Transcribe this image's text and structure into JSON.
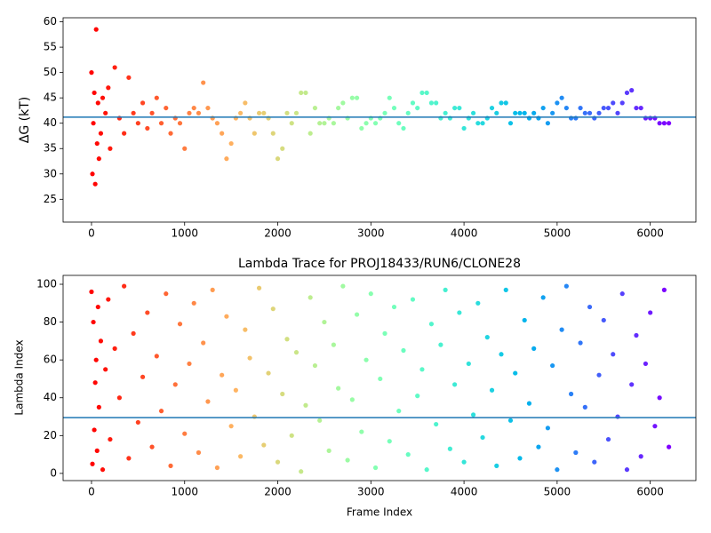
{
  "chart_data": [
    {
      "type": "scatter",
      "ylabel": "ΔG (kT)",
      "colormap": "rainbow_r",
      "x": [
        0,
        10,
        20,
        30,
        40,
        50,
        60,
        70,
        80,
        100,
        120,
        150,
        180,
        200,
        250,
        300,
        350,
        400,
        450,
        500,
        550,
        600,
        650,
        700,
        750,
        800,
        850,
        900,
        950,
        1000,
        1050,
        1100,
        1150,
        1200,
        1250,
        1300,
        1350,
        1400,
        1450,
        1500,
        1550,
        1600,
        1650,
        1700,
        1750,
        1800,
        1850,
        1900,
        1950,
        2000,
        2050,
        2100,
        2150,
        2200,
        2250,
        2300,
        2350,
        2400,
        2450,
        2500,
        2550,
        2600,
        2650,
        2700,
        2750,
        2800,
        2850,
        2900,
        2950,
        3000,
        3050,
        3100,
        3150,
        3200,
        3250,
        3300,
        3350,
        3400,
        3450,
        3500,
        3550,
        3600,
        3650,
        3700,
        3750,
        3800,
        3850,
        3900,
        3950,
        4000,
        4050,
        4100,
        4150,
        4200,
        4250,
        4300,
        4350,
        4400,
        4450,
        4500,
        4550,
        4600,
        4650,
        4700,
        4750,
        4800,
        4850,
        4900,
        4950,
        5000,
        5050,
        5100,
        5150,
        5200,
        5250,
        5300,
        5350,
        5400,
        5450,
        5500,
        5550,
        5600,
        5650,
        5700,
        5750,
        5800,
        5850,
        5900,
        5950,
        6000,
        6050,
        6100,
        6150,
        6200
      ],
      "values": [
        50,
        30,
        40,
        46,
        28,
        58.5,
        36,
        44,
        33,
        38,
        45,
        42,
        47,
        35,
        51,
        41,
        38,
        49,
        42,
        40,
        44,
        39,
        42,
        45,
        40,
        43,
        38,
        41,
        40,
        35,
        42,
        43,
        42,
        48,
        43,
        41,
        40,
        38,
        33,
        36,
        41,
        42,
        44,
        41,
        38,
        42,
        42,
        41,
        38,
        33,
        35,
        42,
        40,
        42,
        46,
        46,
        38,
        43,
        40,
        40,
        41,
        40,
        43,
        44,
        41,
        45,
        45,
        39,
        40,
        41,
        40,
        41,
        42,
        45,
        43,
        40,
        39,
        42,
        44,
        43,
        46,
        46,
        44,
        44,
        41,
        42,
        41,
        43,
        43,
        39,
        41,
        42,
        40,
        40,
        41,
        43,
        42,
        44,
        44,
        40,
        42,
        42,
        42,
        41,
        42,
        41,
        43,
        40,
        42,
        44,
        45,
        43,
        41,
        41,
        43,
        42,
        42,
        41,
        42,
        43,
        43,
        44,
        42,
        44,
        46,
        46.5,
        43,
        43,
        41,
        41,
        41,
        40,
        40,
        40
      ],
      "hline": 41.2,
      "xlim": [
        -305,
        6490
      ],
      "xticks": [
        0,
        1000,
        2000,
        3000,
        4000,
        5000,
        6000
      ],
      "ylim": [
        20.5,
        60.8
      ],
      "yticks": [
        25,
        30,
        35,
        40,
        45,
        50,
        55,
        60
      ]
    },
    {
      "type": "scatter",
      "title": "Lambda Trace for PROJ18433/RUN6/CLONE28",
      "xlabel": "Frame Index",
      "ylabel": "Lambda Index",
      "colormap": "rainbow_r",
      "x": [
        0,
        10,
        20,
        30,
        40,
        50,
        60,
        70,
        80,
        100,
        120,
        150,
        180,
        200,
        250,
        300,
        350,
        400,
        450,
        500,
        550,
        600,
        650,
        700,
        750,
        800,
        850,
        900,
        950,
        1000,
        1050,
        1100,
        1150,
        1200,
        1250,
        1300,
        1350,
        1400,
        1450,
        1500,
        1550,
        1600,
        1650,
        1700,
        1750,
        1800,
        1850,
        1900,
        1950,
        2000,
        2050,
        2100,
        2150,
        2200,
        2250,
        2300,
        2350,
        2400,
        2450,
        2500,
        2550,
        2600,
        2650,
        2700,
        2750,
        2800,
        2850,
        2900,
        2950,
        3000,
        3050,
        3100,
        3150,
        3200,
        3250,
        3300,
        3350,
        3400,
        3450,
        3500,
        3550,
        3600,
        3650,
        3700,
        3750,
        3800,
        3850,
        3900,
        3950,
        4000,
        4050,
        4100,
        4150,
        4200,
        4250,
        4300,
        4350,
        4400,
        4450,
        4500,
        4550,
        4600,
        4650,
        4700,
        4750,
        4800,
        4850,
        4900,
        4950,
        5000,
        5050,
        5100,
        5150,
        5200,
        5250,
        5300,
        5350,
        5400,
        5450,
        5500,
        5550,
        5600,
        5650,
        5700,
        5750,
        5800,
        5850,
        5900,
        5950,
        6000,
        6050,
        6100,
        6150,
        6200
      ],
      "values": [
        96,
        5,
        80,
        23,
        48,
        60,
        12,
        88,
        35,
        70,
        2,
        55,
        92,
        18,
        66,
        40,
        99,
        8,
        74,
        27,
        51,
        85,
        14,
        62,
        33,
        95,
        4,
        47,
        79,
        21,
        58,
        90,
        11,
        69,
        38,
        97,
        3,
        52,
        83,
        25,
        44,
        9,
        76,
        61,
        30,
        98,
        15,
        53,
        87,
        6,
        42,
        71,
        20,
        64,
        1,
        36,
        93,
        57,
        28,
        80,
        12,
        68,
        45,
        99,
        7,
        39,
        84,
        22,
        60,
        95,
        3,
        50,
        74,
        17,
        88,
        33,
        65,
        10,
        92,
        41,
        55,
        2,
        79,
        26,
        68,
        97,
        13,
        47,
        85,
        6,
        58,
        31,
        90,
        19,
        72,
        44,
        4,
        63,
        97,
        28,
        53,
        8,
        81,
        37,
        66,
        14,
        93,
        24,
        57,
        2,
        76,
        99,
        42,
        11,
        69,
        35,
        88,
        6,
        52,
        81,
        18,
        63,
        30,
        95,
        2,
        47,
        73,
        9,
        58,
        85,
        25,
        40,
        97,
        14
      ],
      "hline": 29.5,
      "xlim": [
        -305,
        6490
      ],
      "xticks": [
        0,
        1000,
        2000,
        3000,
        4000,
        5000,
        6000
      ],
      "ylim": [
        -3.8,
        104.7
      ],
      "yticks": [
        0,
        20,
        40,
        60,
        80,
        100
      ]
    }
  ]
}
